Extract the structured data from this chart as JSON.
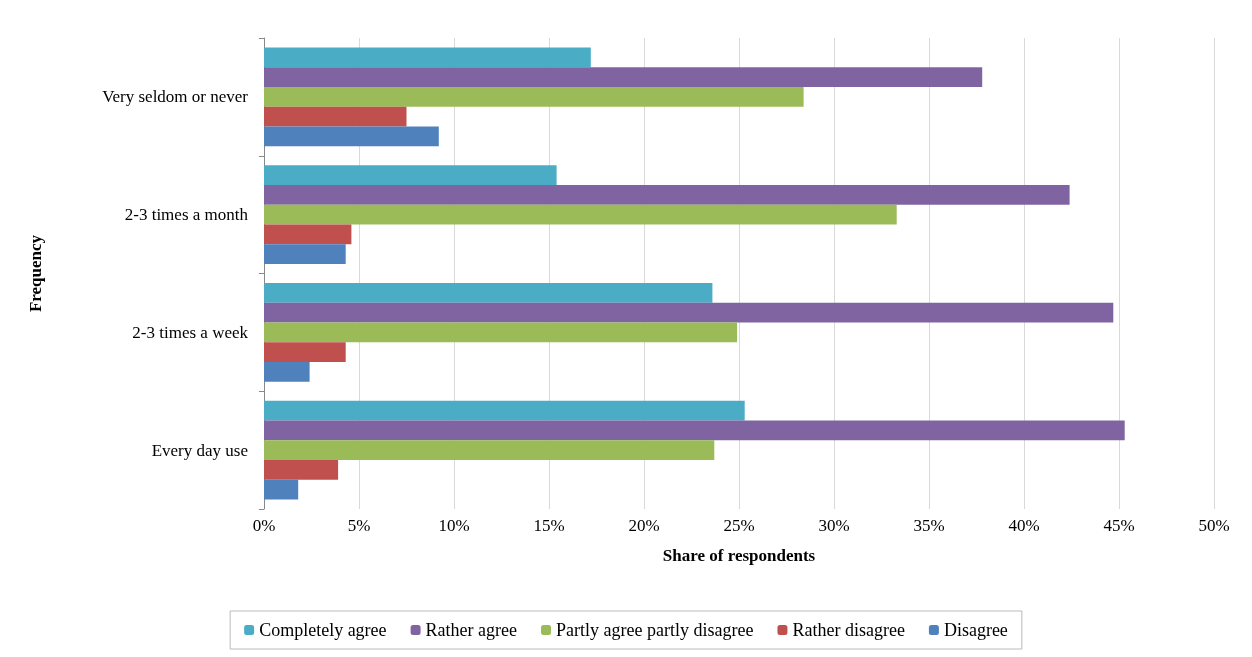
{
  "chart_data": {
    "type": "bar",
    "orientation": "horizontal",
    "xlabel": "Share of respondents",
    "ylabel": "Frequency",
    "categories": [
      "Very seldom or never",
      "2-3 times a month",
      "2-3 times a week",
      "Every day use"
    ],
    "series": [
      {
        "name": "Completely agree",
        "color": "#4bacc6",
        "values": [
          17.2,
          15.4,
          23.6,
          25.3
        ]
      },
      {
        "name": "Rather agree",
        "color": "#8064a2",
        "values": [
          37.8,
          42.4,
          44.7,
          45.3
        ]
      },
      {
        "name": "Partly agree partly disagree",
        "color": "#9bbb59",
        "values": [
          28.4,
          33.3,
          24.9,
          23.7
        ]
      },
      {
        "name": "Rather disagree",
        "color": "#c0504d",
        "values": [
          7.5,
          4.6,
          4.3,
          3.9
        ]
      },
      {
        "name": "Disagree",
        "color": "#4f81bd",
        "values": [
          9.2,
          4.3,
          2.4,
          1.8
        ]
      }
    ],
    "xlim": [
      0,
      50
    ],
    "xticks": [
      {
        "value": 0,
        "label": "0%"
      },
      {
        "value": 5,
        "label": "5%"
      },
      {
        "value": 10,
        "label": "10%"
      },
      {
        "value": 15,
        "label": "15%"
      },
      {
        "value": 20,
        "label": "20%"
      },
      {
        "value": 25,
        "label": "25%"
      },
      {
        "value": 30,
        "label": "30%"
      },
      {
        "value": 35,
        "label": "35%"
      },
      {
        "value": 40,
        "label": "40%"
      },
      {
        "value": 45,
        "label": "45%"
      },
      {
        "value": 50,
        "label": "50%"
      }
    ],
    "grid": "x",
    "legend": "bottom"
  }
}
